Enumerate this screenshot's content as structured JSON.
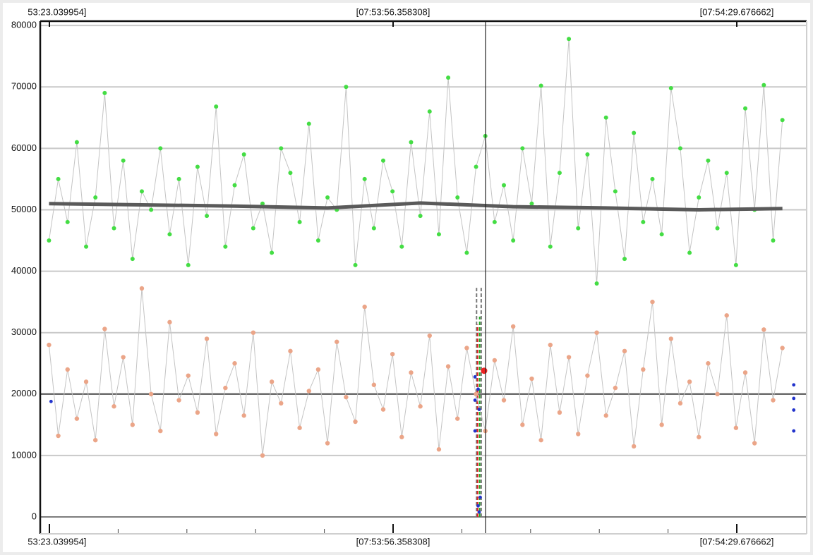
{
  "chart_data": {
    "type": "scatter",
    "xlim": [
      28402.15,
      28476.45
    ],
    "ylim": [
      -2750,
      80700
    ],
    "xticks": [
      {
        "value": 28403.039954,
        "label": "[07:53:23.039954]"
      },
      {
        "value": 28436.358308,
        "label": "[07:53:56.358308]"
      },
      {
        "value": 28469.676662,
        "label": "[07:54:29.676662]"
      }
    ],
    "minor_xticks": [
      28409.704,
      28416.368,
      28423.031,
      28429.695,
      28443.022,
      28449.686,
      28456.349,
      28463.013
    ],
    "yticks": [
      0,
      10000,
      20000,
      30000,
      40000,
      50000,
      60000,
      70000,
      80000
    ],
    "grid": true,
    "hlines": [
      {
        "y": 0,
        "color": "#7d7d7d"
      },
      {
        "y": 20000,
        "color": "#4a4a4a"
      }
    ],
    "cursor_x": 28445.32,
    "markers": [
      {
        "x": 28444.45,
        "y": [
          0,
          37300
        ],
        "color": "#777777"
      },
      {
        "x": 28444.55,
        "y": [
          0,
          31300
        ],
        "color": "#dd2222"
      },
      {
        "x": 28444.75,
        "y": [
          0,
          32600
        ],
        "color": "#22aa22"
      },
      {
        "x": 28444.9,
        "y": [
          0,
          37300
        ],
        "color": "#777777"
      }
    ],
    "x": [
      28403.0,
      28403.9,
      28404.8,
      28405.7,
      28406.6,
      28407.5,
      28408.4,
      28409.3,
      28410.2,
      28411.1,
      28412.0,
      28412.9,
      28413.8,
      28414.7,
      28415.6,
      28416.5,
      28417.4,
      28418.3,
      28419.2,
      28420.1,
      28421.0,
      28421.9,
      28422.8,
      28423.7,
      28424.6,
      28425.5,
      28426.4,
      28427.3,
      28428.2,
      28429.1,
      28430.0,
      28430.9,
      28431.8,
      28432.7,
      28433.6,
      28434.5,
      28435.4,
      28436.3,
      28437.2,
      28438.1,
      28439.0,
      28439.9,
      28440.8,
      28441.7,
      28442.6,
      28443.5,
      28444.4,
      28445.3,
      28446.2,
      28447.1,
      28448.0,
      28448.9,
      28449.8,
      28450.7,
      28451.6,
      28452.5,
      28453.4,
      28454.3,
      28455.2,
      28456.1,
      28457.0,
      28457.9,
      28458.8,
      28459.7,
      28460.6,
      28461.5,
      28462.4,
      28463.3,
      28464.2,
      28465.1,
      28466.0,
      28466.9,
      28467.8,
      28468.7,
      28469.6,
      28470.5,
      28471.4,
      28472.3,
      28473.2,
      28474.1
    ],
    "series": [
      {
        "color": "#44dd44",
        "line_color": "#c4c4c4",
        "radius": 3,
        "values": [
          45000,
          55000,
          48000,
          61000,
          44000,
          52000,
          69000,
          47000,
          58000,
          42000,
          53000,
          50000,
          60000,
          46000,
          55000,
          41000,
          57000,
          49000,
          66800,
          44000,
          54000,
          59000,
          47000,
          51000,
          43000,
          60000,
          56000,
          48000,
          64000,
          45000,
          52000,
          50000,
          70000,
          41000,
          55000,
          47000,
          58000,
          53000,
          44000,
          61000,
          49000,
          66000,
          46000,
          71500,
          52000,
          43000,
          57000,
          62000,
          48000,
          54000,
          45000,
          60000,
          51000,
          70200,
          44000,
          56000,
          77800,
          47000,
          59000,
          38000,
          65000,
          53000,
          42000,
          62500,
          48000,
          55000,
          46000,
          69800,
          60000,
          43000,
          52000,
          58000,
          47000,
          56000,
          41000,
          66500,
          50000,
          70300,
          45000,
          64600
        ]
      },
      {
        "color": "#eba588",
        "line_color": "#c4c4c4",
        "radius": 3.2,
        "values": [
          28000,
          13200,
          24000,
          16000,
          22000,
          12500,
          30600,
          18000,
          26000,
          15000,
          37200,
          20000,
          14000,
          31700,
          19000,
          23000,
          17000,
          29000,
          13500,
          21000,
          25000,
          16500,
          30000,
          10000,
          22000,
          18500,
          27000,
          14500,
          20500,
          24000,
          12000,
          28500,
          19500,
          15500,
          34200,
          21500,
          17500,
          26500,
          13000,
          23500,
          18000,
          29500,
          11000,
          24500,
          16000,
          27500,
          20000,
          14000,
          25500,
          19000,
          31000,
          15000,
          22500,
          12500,
          28000,
          17000,
          26000,
          13500,
          23000,
          30000,
          16500,
          21000,
          27000,
          11500,
          24000,
          35000,
          15000,
          29000,
          18500,
          22000,
          13000,
          25000,
          20000,
          32800,
          14500,
          23500,
          12000,
          30500,
          19000,
          27500
        ]
      },
      {
        "color": "#5a5a5a",
        "line_color": "#5a5a5a",
        "line_width": 5,
        "radius": 0,
        "x": [
          28403.0,
          28412.0,
          28421.0,
          28430.0,
          28439.0,
          28448.0,
          28457.0,
          28466.0,
          28474.1
        ],
        "values": [
          51000,
          50800,
          50600,
          50300,
          51100,
          50500,
          50300,
          50000,
          50200
        ]
      },
      {
        "color": "#2233cc",
        "radius": 2.4,
        "x": [
          28403.2,
          28444.3,
          28444.3,
          28444.3,
          28444.6,
          28444.7,
          28444.6,
          28444.7,
          28444.8,
          28475.2,
          28475.2,
          28475.2,
          28475.2
        ],
        "values": [
          18800,
          22800,
          19000,
          14000,
          20800,
          17500,
          1800,
          800,
          3200,
          21500,
          19300,
          17400,
          14000
        ]
      },
      {
        "color": "#ee2222",
        "radius": 4.5,
        "x": [
          28445.18
        ],
        "values": [
          23800
        ]
      }
    ]
  }
}
